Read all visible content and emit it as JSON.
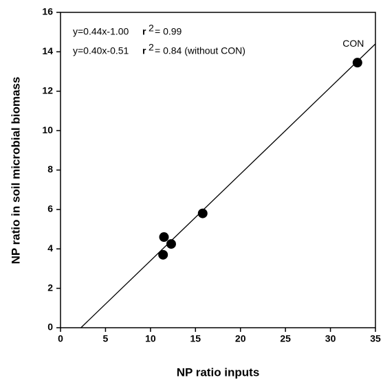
{
  "chart_data": {
    "type": "scatter",
    "xlabel": "NP ratio inputs",
    "ylabel": "NP ratio in soil microbial biomass",
    "x": [
      11.4,
      11.5,
      12.3,
      15.8,
      33.0
    ],
    "values": [
      3.7,
      4.6,
      4.25,
      5.8,
      13.45
    ],
    "point_labels": [
      null,
      null,
      null,
      null,
      "CON"
    ],
    "color": "#000000",
    "fit_line": {
      "x": [
        2.27,
        35
      ],
      "y": [
        0,
        14.4
      ]
    },
    "annotations": [
      {
        "equation": "y=0.44x-1.00",
        "r": "r",
        "sup": "2",
        "r2": "= 0.99"
      },
      {
        "equation": "y=0.40x-0.51",
        "r": "r",
        "sup": "2",
        "r2": "= 0.84 (without CON)"
      }
    ],
    "xlim": [
      0,
      35
    ],
    "xticks": [
      0,
      5,
      10,
      15,
      20,
      25,
      30,
      35
    ],
    "ylim": [
      0,
      16
    ],
    "yticks": [
      0,
      2,
      4,
      6,
      8,
      10,
      12,
      14,
      16
    ],
    "grid": false
  }
}
